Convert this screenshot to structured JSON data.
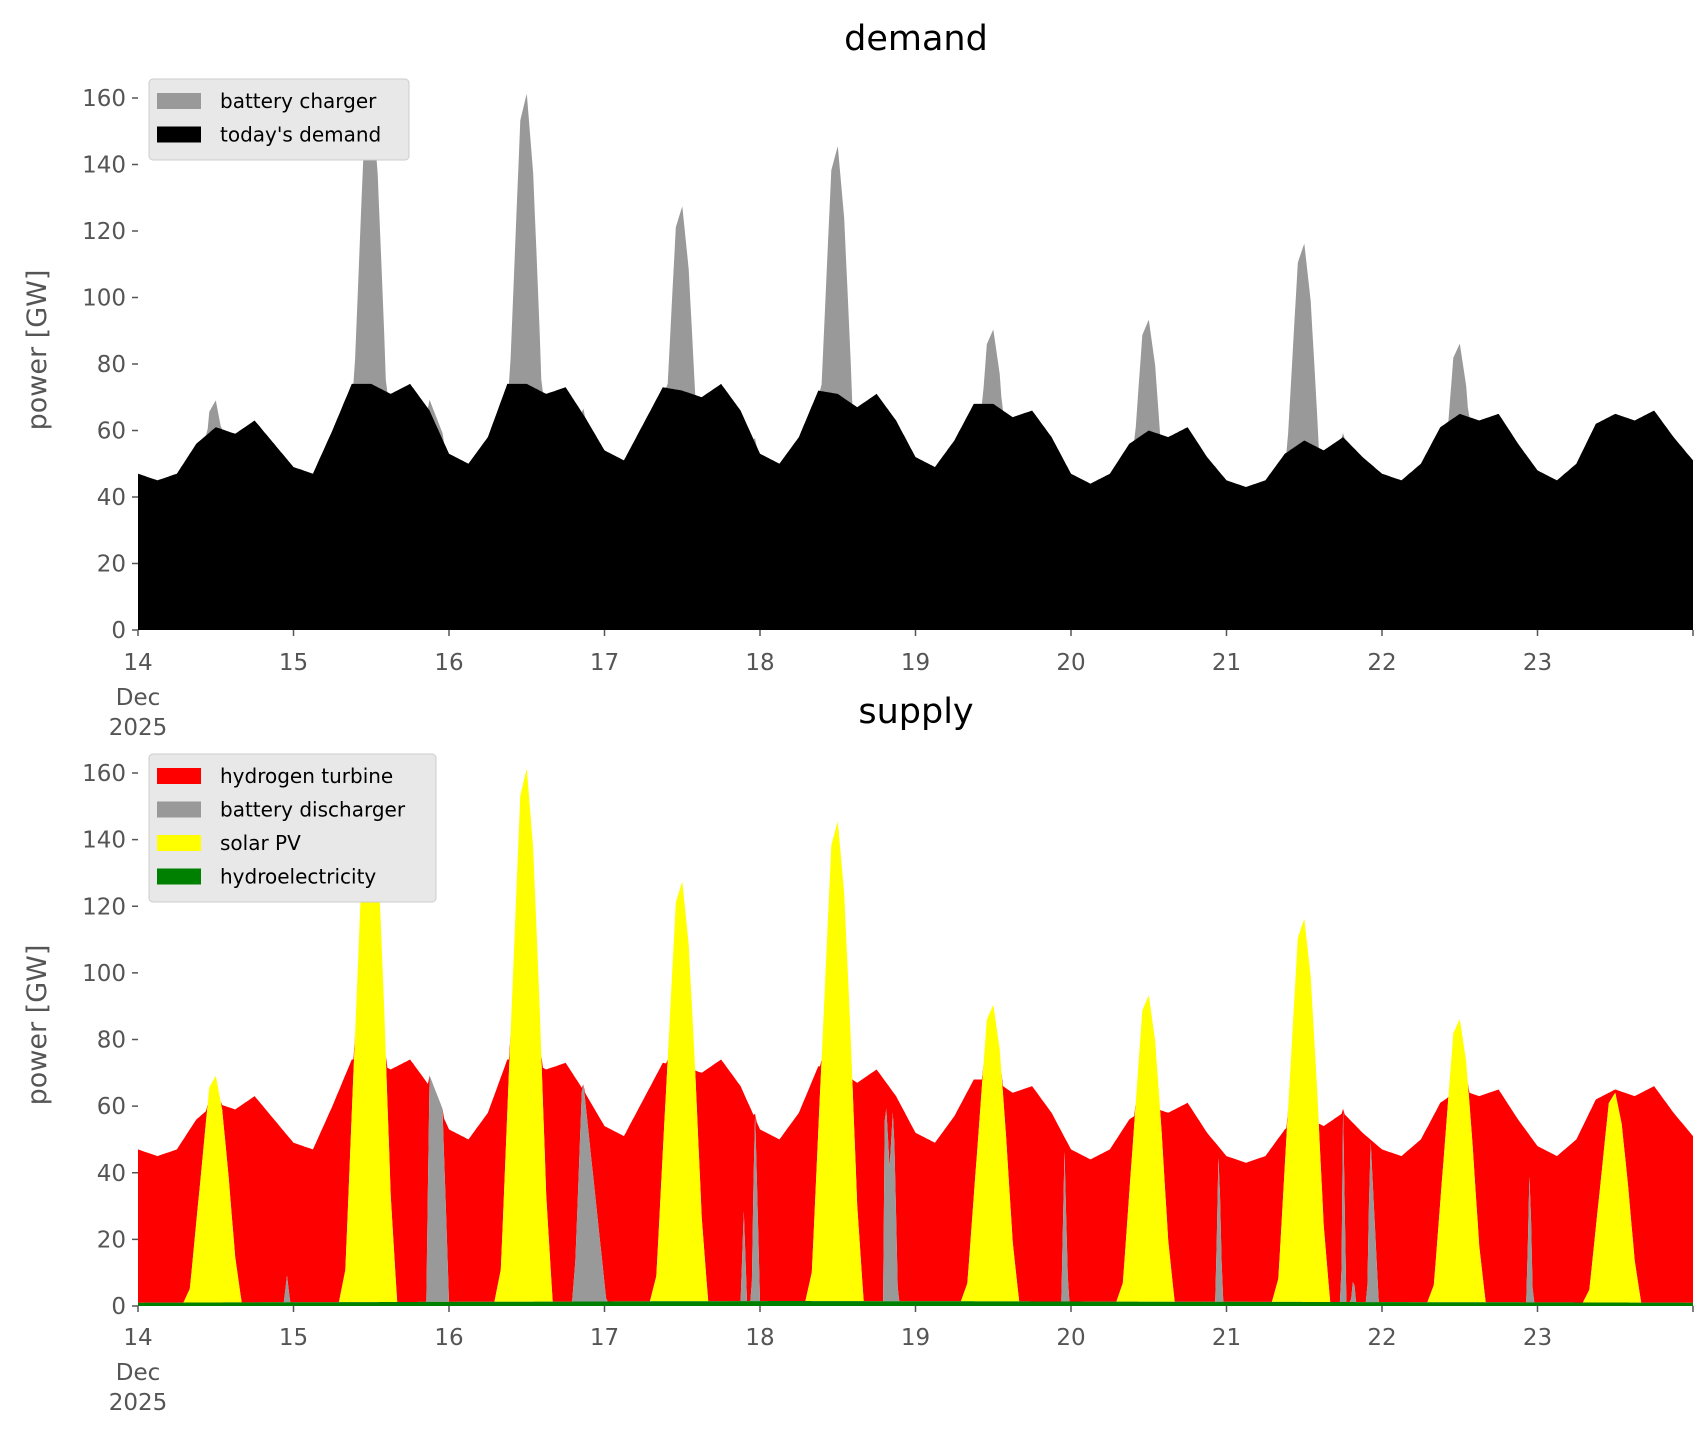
{
  "chart_data": [
    {
      "type": "area",
      "title": "demand",
      "ylabel": "power [GW]",
      "ylim": [
        0,
        165
      ],
      "yticks": [
        "0",
        "20",
        "40",
        "60",
        "80",
        "100",
        "120",
        "140",
        "160"
      ],
      "xticks": [
        "14",
        "15",
        "16",
        "17",
        "18",
        "19",
        "20",
        "21",
        "22",
        "23"
      ],
      "xtick_sub": [
        "Dec",
        "2025"
      ],
      "x_unit": "hours since 14 Dec 2025 00:00",
      "legend": {
        "placement": "top-left",
        "entries": [
          {
            "label": "battery charger",
            "color": "#999999"
          },
          {
            "label": "today's demand",
            "color": "#000000"
          }
        ]
      }
    },
    {
      "type": "area",
      "title": "supply",
      "ylabel": "power [GW]",
      "ylim": [
        0,
        165
      ],
      "yticks": [
        "0",
        "20",
        "40",
        "60",
        "80",
        "100",
        "120",
        "140",
        "160"
      ],
      "xticks": [
        "14",
        "15",
        "16",
        "17",
        "18",
        "19",
        "20",
        "21",
        "22",
        "23"
      ],
      "xtick_sub": [
        "Dec",
        "2025"
      ],
      "legend": {
        "placement": "top-left",
        "entries": [
          {
            "label": "hydrogen turbine",
            "color": "#ff0000"
          },
          {
            "label": "battery discharger",
            "color": "#999999"
          },
          {
            "label": "solar PV",
            "color": "#ffff00"
          },
          {
            "label": "hydroelectricity",
            "color": "#008000"
          }
        ]
      }
    }
  ],
  "series": {
    "demand_step_hours": 3,
    "demand": [
      47,
      45,
      47,
      56,
      61,
      59,
      63,
      56,
      49,
      47,
      60,
      74,
      74,
      71,
      74,
      66,
      53,
      50,
      58,
      74,
      74,
      71,
      73,
      64,
      54,
      51,
      62,
      73,
      72,
      70,
      74,
      66,
      53,
      50,
      58,
      72,
      71,
      67,
      71,
      63,
      52,
      49,
      57,
      68,
      68,
      64,
      66,
      58,
      47,
      44,
      47,
      56,
      60,
      58,
      61,
      52,
      45,
      43,
      45,
      53,
      57,
      54,
      58,
      52,
      47,
      45,
      50,
      61,
      65,
      63,
      65,
      56,
      48,
      45,
      50,
      62,
      65,
      63,
      66,
      58,
      51
    ],
    "solar_pv": {
      "profile_hours": [
        7,
        8,
        10,
        11,
        12,
        13,
        14,
        15,
        16
      ],
      "profile": [
        0,
        0.06,
        0.65,
        0.95,
        1,
        0.85,
        0.55,
        0.2,
        0
      ],
      "daily_peak": [
        68,
        160,
        160,
        126,
        144,
        89,
        92,
        115,
        85,
        63
      ]
    },
    "battery_discharger": [
      [
        0,
        0
      ],
      [
        22.5,
        0
      ],
      [
        23,
        8
      ],
      [
        23.5,
        0
      ],
      [
        44.5,
        0
      ],
      [
        45,
        68
      ],
      [
        47,
        58
      ],
      [
        48,
        0
      ],
      [
        67,
        0
      ],
      [
        67.5,
        12
      ],
      [
        68.6,
        68
      ],
      [
        72.3,
        0
      ],
      [
        93,
        0
      ],
      [
        93.5,
        27
      ],
      [
        94,
        0
      ],
      [
        94.7,
        0
      ],
      [
        95.2,
        60
      ],
      [
        96,
        0
      ],
      [
        115,
        0
      ],
      [
        115.3,
        65
      ],
      [
        116,
        40
      ],
      [
        116.6,
        60
      ],
      [
        117.3,
        0
      ],
      [
        142.5,
        0
      ],
      [
        143,
        45
      ],
      [
        143.6,
        0
      ],
      [
        166.3,
        0
      ],
      [
        166.8,
        48
      ],
      [
        167.4,
        0
      ],
      [
        185.7,
        0
      ],
      [
        186,
        58
      ],
      [
        186.5,
        0
      ],
      [
        187.2,
        0
      ],
      [
        187.6,
        8
      ],
      [
        188,
        0
      ],
      [
        189.7,
        0
      ],
      [
        190.2,
        50
      ],
      [
        191.5,
        0
      ],
      [
        214.3,
        0
      ],
      [
        214.8,
        42
      ],
      [
        215.3,
        0
      ],
      [
        240,
        0
      ]
    ],
    "hydroelectricity": [
      [
        0,
        1
      ],
      [
        100,
        1.5
      ],
      [
        240,
        1
      ]
    ]
  },
  "colors": {
    "charger": "#999999",
    "demand": "#000000",
    "hydrogen": "#ff0000",
    "discharger": "#999999",
    "solar": "#ffff00",
    "hydro": "#008000"
  }
}
